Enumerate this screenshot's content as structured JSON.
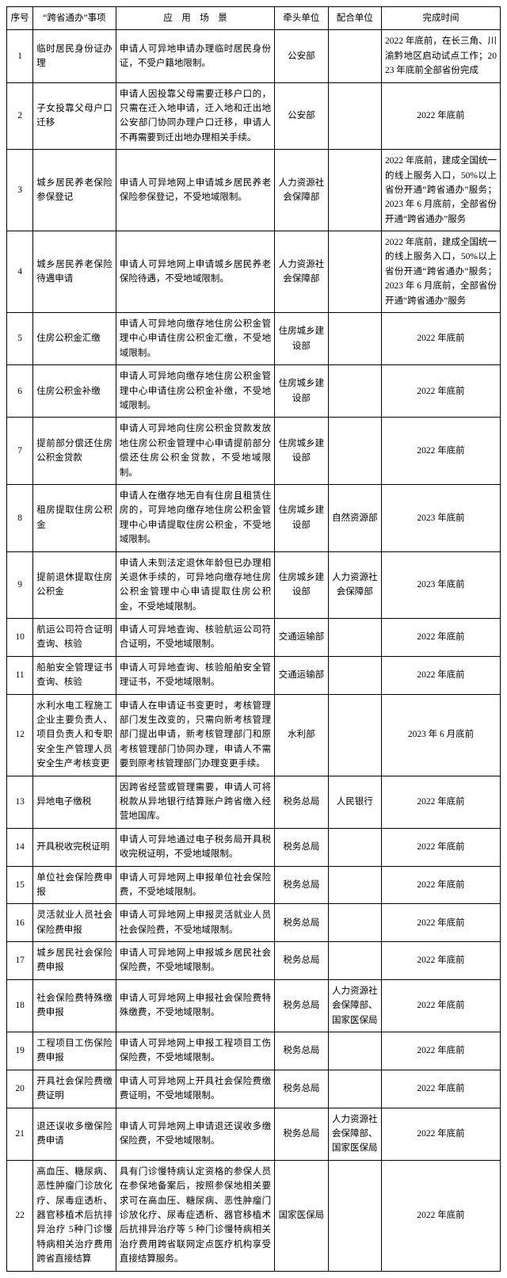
{
  "headers": {
    "seq": "序号",
    "item": "“跨省通办”事项",
    "scene_prefix": "应",
    "scene_mid": "用",
    "scene_suffix": "场",
    "scene_last": "景",
    "lead": "牵头单位",
    "co": "配合单位",
    "done": "完成时间"
  },
  "rows": [
    {
      "seq": "1",
      "item": "临时居民身份证办理",
      "scene": "申请人可异地申请办理临时居民身份证，不受户籍地限制。",
      "lead": "公安部",
      "co": "",
      "done": "2022 年底前，在长三角、川渝黔地区启动试点工作；2023 年底前全部省份完成",
      "done_long": true
    },
    {
      "seq": "2",
      "item": "子女投靠父母户口迁移",
      "scene": "申请人因投靠父母需要迁移户口的，只需在迁入地申请，迁入地和迁出地公安部门协同办理户口迁移，申请人不再需要到迁出地办理相关手续。",
      "lead": "公安部",
      "co": "",
      "done": "2022 年底前"
    },
    {
      "seq": "3",
      "item": "城乡居民养老保险参保登记",
      "scene": "申请人可异地网上申请城乡居民养老保险参保登记，不受地域限制。",
      "lead": "人力资源社会保障部",
      "co": "",
      "done": "2022 年底前，建成全国统一的线上服务入口，50%以上省份开通“跨省通办”服务；2023 年 6 月底前，全部省份开通“跨省通办”服务",
      "done_long": true
    },
    {
      "seq": "4",
      "item": "城乡居民养老保险待遇申请",
      "scene": "申请人可异地网上申请城乡居民养老保险待遇，不受地域限制。",
      "lead": "人力资源社会保障部",
      "co": "",
      "done": "2022 年底前，建成全国统一的线上服务入口，50%以上省份开通“跨省通办”服务；2023 年 6 月底前，全部省份开通“跨省通办”服务",
      "done_long": true
    },
    {
      "seq": "5",
      "item": "住房公积金汇缴",
      "scene": "申请人可异地向缴存地住房公积金管理中心申请住房公积金汇缴，不受地域限制。",
      "lead": "住房城乡建设部",
      "co": "",
      "done": "2022 年底前"
    },
    {
      "seq": "6",
      "item": "住房公积金补缴",
      "scene": "申请人可异地向缴存地住房公积金管理中心申请住房公积金补缴，不受地域限制。",
      "lead": "住房城乡建设部",
      "co": "",
      "done": "2022 年底前"
    },
    {
      "seq": "7",
      "item": "提前部分偿还住房公积金贷款",
      "scene": "申请人可异地向住房公积金贷款发放地住房公积金管理中心申请提前部分偿还住房公积金贷款，不受地域限制。",
      "lead": "住房城乡建设部",
      "co": "",
      "done": "2022 年底前"
    },
    {
      "seq": "8",
      "item": "租房提取住房公积金",
      "scene": "申请人在缴存地无自有住房且租赁住房的，可异地向缴存地住房公积金管理中心申请提取住房公积金，不受地域限制。",
      "lead": "住房城乡建设部",
      "co": "自然资源部",
      "done": "2023 年底前"
    },
    {
      "seq": "9",
      "item": "提前退休提取住房公积金",
      "scene": "申请人未到法定退休年龄但已办理相关退休手续的，可异地向缴存地住房公积金管理中心申请提取住房公积金，不受地域限制。",
      "lead": "住房城乡建设部",
      "co": "人力资源社会保障部",
      "done": "2023 年底前"
    },
    {
      "seq": "10",
      "item": "航运公司符合证明查询、核验",
      "scene": "申请人可异地查询、核验航运公司符合证明，不受地域限制。",
      "lead": "交通运输部",
      "co": "",
      "done": "2022 年底前"
    },
    {
      "seq": "11",
      "item": "船舶安全管理证书查询、核验",
      "scene": "申请人可异地查询、核验船舶安全管理证书，不受地域限制。",
      "lead": "交通运输部",
      "co": "",
      "done": "2022 年底前"
    },
    {
      "seq": "12",
      "item": "水利水电工程施工企业主要负责人、项目负责人和专职安全生产管理人员安全生产考核变更",
      "scene": "申请人在申请证书变更时，考核管理部门发生改变的，只需向新考核管理部门提出申请，新考核管理部门和原考核管理部门协同办理，申请人不需要到原考核管理部门办理变更手续。",
      "lead": "水利部",
      "co": "",
      "done": "2023 年 6 月底前"
    },
    {
      "seq": "13",
      "item": "异地电子缴税",
      "scene": "因跨省经营或管理需要，申请人可将税款从异地银行结算账户跨省缴入经营地国库。",
      "lead": "税务总局",
      "co": "人民银行",
      "done": "2022 年底前"
    },
    {
      "seq": "14",
      "item": "开具税收完税证明",
      "scene": "申请人可异地通过电子税务局开具税收完税证明，不受地域限制。",
      "lead": "税务总局",
      "co": "",
      "done": "2022 年底前"
    },
    {
      "seq": "15",
      "item": "单位社会保险费申报",
      "scene": "申请人可异地网上申报单位社会保险费，不受地域限制。",
      "lead": "税务总局",
      "co": "",
      "done": "2022 年底前"
    },
    {
      "seq": "16",
      "item": "灵活就业人员社会保险费申报",
      "scene": "申请人可异地网上申报灵活就业人员社会保险费，不受地域限制。",
      "lead": "税务总局",
      "co": "",
      "done": "2022 年底前"
    },
    {
      "seq": "17",
      "item": "城乡居民社会保险费申报",
      "scene": "申请人可异地网上申报城乡居民社会保险费，不受地域限制。",
      "lead": "税务总局",
      "co": "",
      "done": "2022 年底前"
    },
    {
      "seq": "18",
      "item": "社会保险费特殊缴费申报",
      "scene": "申请人可异地网上申报社会保险费特殊缴费，不受地域限制。",
      "lead": "税务总局",
      "co": "人力资源社会保障部、国家医保局",
      "done": "2022 年底前"
    },
    {
      "seq": "19",
      "item": "工程项目工伤保险费申报",
      "scene": "申请人可异地网上申报工程项目工伤保险费，不受地域限制。",
      "lead": "税务总局",
      "co": "",
      "done": "2022 年底前"
    },
    {
      "seq": "20",
      "item": "开具社会保险费缴费证明",
      "scene": "申请人可异地网上开具社会保险费缴费证明，不受地域限制。",
      "lead": "税务总局",
      "co": "",
      "done": "2022 年底前"
    },
    {
      "seq": "21",
      "item": "退还误收多缴保险费申请",
      "scene": "申请人可异地网上申请退还误收多缴保险费，不受地域限制。",
      "lead": "税务总局",
      "co": "人力资源社会保障部、国家医保局",
      "done": "2022 年底前"
    },
    {
      "seq": "22",
      "item": "高血压、糖尿病、恶性肿瘤门诊放化疗、尿毒症透析、器官移植术后抗排异治疗 5种门诊慢特病相关治疗费用跨省直接结算",
      "scene": "具有门诊慢特病认定资格的参保人员在参保地备案后，按照参保地相关要求可在高血压、糖尿病、恶性肿瘤门诊放化疗、尿毒症透析、器官移植术后抗排异治疗等 5 种门诊慢特病相关治疗费用跨省联网定点医疗机构享受直接结算服务。",
      "lead": "国家医保局",
      "co": "",
      "done": "2022 年底前"
    }
  ]
}
